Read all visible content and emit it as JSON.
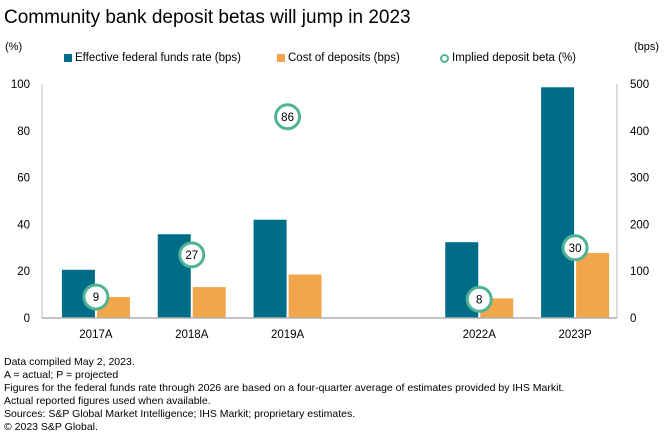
{
  "chart_data": {
    "type": "bar",
    "title": "Community bank deposit betas will jump in 2023",
    "left_axis_label": "(%)",
    "right_axis_label": "(bps)",
    "categories": [
      "2017A",
      "2018A",
      "2019A",
      "",
      "2022A",
      "2023P"
    ],
    "series": [
      {
        "name": "Effective federal funds rate (bps)",
        "kind": "bar",
        "axis": "right",
        "color": "#006d88",
        "values": [
          103,
          179,
          210,
          null,
          162,
          493
        ]
      },
      {
        "name": "Cost of deposits (bps)",
        "kind": "bar",
        "axis": "right",
        "color": "#f0a64b",
        "values": [
          45,
          66,
          93,
          null,
          42,
          139
        ]
      },
      {
        "name": "Implied deposit beta (%)",
        "kind": "marker",
        "axis": "left",
        "color": "#4fb395",
        "values": [
          9,
          27,
          86,
          null,
          8,
          30
        ]
      }
    ],
    "left_axis": {
      "ylim": [
        0,
        100
      ],
      "ticks": [
        "0",
        "20",
        "40",
        "60",
        "80",
        "100"
      ]
    },
    "right_axis": {
      "ylim": [
        0,
        500
      ],
      "ticks": [
        "0",
        "100",
        "200",
        "300",
        "400",
        "500"
      ]
    },
    "grid": false,
    "legend_position": "top"
  },
  "footnotes": [
    "Data compiled May 2, 2023.",
    "A = actual; P = projected",
    "Figures for the federal funds rate through 2026 are based on a four-quarter average of estimates provided by IHS Markit.",
    "Actual reported figures used when available.",
    "Sources: S&P Global Market Intelligence; IHS Markit; proprietary estimates.",
    "© 2023 S&P Global."
  ]
}
